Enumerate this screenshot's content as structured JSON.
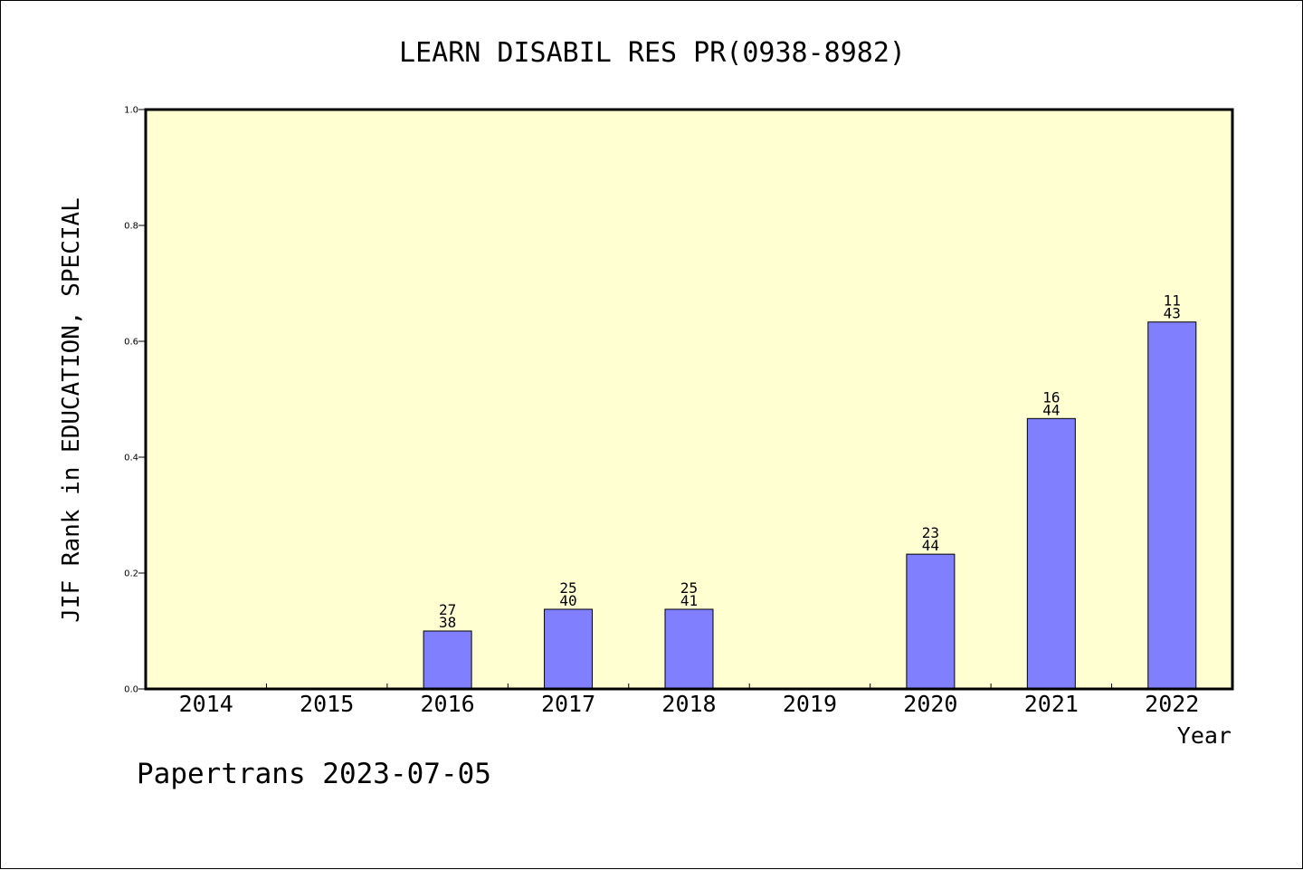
{
  "footer": {
    "text": "Papertrans 2023-07-05"
  },
  "chart_data": {
    "type": "bar",
    "title": "LEARN DISABIL RES PR(0938-8982)",
    "xlabel": "Year",
    "ylabel": "JIF Rank in EDUCATION, SPECIAL",
    "categories": [
      "2014",
      "2015",
      "2016",
      "2017",
      "2018",
      "2019",
      "2020",
      "2021",
      "2022"
    ],
    "values": [
      null,
      null,
      0.1,
      0.1375,
      0.1375,
      null,
      0.2326,
      0.4667,
      0.6333
    ],
    "labels": [
      null,
      null,
      {
        "rank": "27",
        "total": "38"
      },
      {
        "rank": "25",
        "total": "40"
      },
      {
        "rank": "25",
        "total": "41"
      },
      null,
      {
        "rank": "23",
        "total": "44"
      },
      {
        "rank": "16",
        "total": "44"
      },
      {
        "rank": "11",
        "total": "43"
      }
    ],
    "ylim": [
      0,
      1
    ],
    "yticks": [
      "0.0",
      "0.2",
      "0.4",
      "0.6",
      "0.8",
      "1.0"
    ],
    "grid": false,
    "colors": {
      "plot_background": "#ffffd2",
      "bar": "#8080ff",
      "bar_edge": "#000000"
    }
  }
}
